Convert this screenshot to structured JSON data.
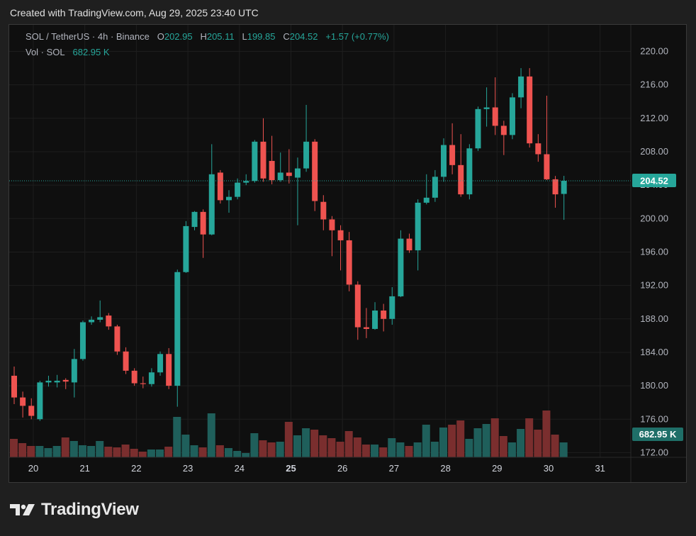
{
  "header": {
    "created_text": "Created with TradingView.com, Aug 29, 2025 23:40 UTC"
  },
  "legend": {
    "symbol": "SOL / TetherUS · 4h · Binance",
    "open_label": "O",
    "open": "202.95",
    "high_label": "H",
    "high": "205.11",
    "low_label": "L",
    "low": "199.85",
    "close_label": "C",
    "close": "204.52",
    "change": "+1.57 (+0.77%)",
    "vol_label": "Vol · SOL",
    "vol_value": "682.95 K"
  },
  "price_badge": "204.52",
  "volume_badge": "682.95 K",
  "logo": {
    "text": "TradingView",
    "icon": "tradingview-logo-icon"
  },
  "colors": {
    "up": "#26a69a",
    "down": "#ef5350",
    "vol_up": "#1f5f5b",
    "vol_down": "#7a2e2e",
    "background": "#0f0f0f"
  },
  "chart_data": {
    "type": "candlestick",
    "title": "SOL / TetherUS · 4h · Binance",
    "x_ticks": [
      "20",
      "21",
      "22",
      "23",
      "24",
      "25",
      "26",
      "27",
      "28",
      "29",
      "30",
      "31"
    ],
    "y_ticks": [
      "220.00",
      "216.00",
      "212.00",
      "208.00",
      "204.00",
      "200.00",
      "196.00",
      "192.00",
      "188.00",
      "184.00",
      "180.00",
      "176.00",
      "172.00"
    ],
    "ylim": [
      171,
      222
    ],
    "grid": true,
    "current_price": 204.52,
    "candles": [
      {
        "o": 181.2,
        "h": 182.3,
        "l": 177.8,
        "c": 178.6,
        "v": 0.26
      },
      {
        "o": 178.6,
        "h": 179.3,
        "l": 176.2,
        "c": 177.6,
        "v": 0.2
      },
      {
        "o": 177.6,
        "h": 178.5,
        "l": 176.0,
        "c": 176.4,
        "v": 0.16
      },
      {
        "o": 176.0,
        "h": 180.6,
        "l": 175.8,
        "c": 180.4,
        "v": 0.16
      },
      {
        "o": 180.4,
        "h": 181.2,
        "l": 179.9,
        "c": 180.6,
        "v": 0.13
      },
      {
        "o": 180.4,
        "h": 181.3,
        "l": 179.8,
        "c": 180.6,
        "v": 0.16
      },
      {
        "o": 180.7,
        "h": 180.9,
        "l": 179.6,
        "c": 180.5,
        "v": 0.28
      },
      {
        "o": 180.4,
        "h": 184.4,
        "l": 178.6,
        "c": 183.2,
        "v": 0.23
      },
      {
        "o": 183.2,
        "h": 187.8,
        "l": 183.0,
        "c": 187.6,
        "v": 0.17
      },
      {
        "o": 187.6,
        "h": 188.3,
        "l": 187.3,
        "c": 187.9,
        "v": 0.16
      },
      {
        "o": 187.9,
        "h": 190.2,
        "l": 187.6,
        "c": 188.2,
        "v": 0.23
      },
      {
        "o": 188.4,
        "h": 188.7,
        "l": 186.7,
        "c": 187.1,
        "v": 0.15
      },
      {
        "o": 187.1,
        "h": 187.3,
        "l": 183.7,
        "c": 184.1,
        "v": 0.14
      },
      {
        "o": 184.1,
        "h": 184.6,
        "l": 181.4,
        "c": 181.8,
        "v": 0.18
      },
      {
        "o": 181.8,
        "h": 182.1,
        "l": 180.0,
        "c": 180.3,
        "v": 0.12
      },
      {
        "o": 180.3,
        "h": 181.1,
        "l": 179.7,
        "c": 180.2,
        "v": 0.08
      },
      {
        "o": 180.2,
        "h": 182.1,
        "l": 179.9,
        "c": 181.6,
        "v": 0.11
      },
      {
        "o": 181.6,
        "h": 184.1,
        "l": 181.2,
        "c": 183.8,
        "v": 0.11
      },
      {
        "o": 183.8,
        "h": 184.5,
        "l": 179.6,
        "c": 180.0,
        "v": 0.15
      },
      {
        "o": 180.0,
        "h": 193.9,
        "l": 177.5,
        "c": 193.6,
        "v": 0.57
      },
      {
        "o": 193.6,
        "h": 199.7,
        "l": 193.5,
        "c": 199.1,
        "v": 0.32
      },
      {
        "o": 199.0,
        "h": 200.9,
        "l": 198.6,
        "c": 200.8,
        "v": 0.17
      },
      {
        "o": 200.8,
        "h": 201.1,
        "l": 195.3,
        "c": 198.1,
        "v": 0.14
      },
      {
        "o": 198.1,
        "h": 208.9,
        "l": 198.0,
        "c": 205.3,
        "v": 0.62
      },
      {
        "o": 205.5,
        "h": 205.8,
        "l": 201.8,
        "c": 202.2,
        "v": 0.17
      },
      {
        "o": 202.2,
        "h": 203.4,
        "l": 200.7,
        "c": 202.6,
        "v": 0.13
      },
      {
        "o": 202.6,
        "h": 204.8,
        "l": 202.3,
        "c": 204.3,
        "v": 0.09
      },
      {
        "o": 204.3,
        "h": 205.3,
        "l": 204.0,
        "c": 204.5,
        "v": 0.06
      },
      {
        "o": 204.5,
        "h": 209.4,
        "l": 204.3,
        "c": 209.2,
        "v": 0.34
      },
      {
        "o": 209.2,
        "h": 212.0,
        "l": 204.4,
        "c": 204.8,
        "v": 0.24
      },
      {
        "o": 206.9,
        "h": 209.9,
        "l": 204.1,
        "c": 204.6,
        "v": 0.21
      },
      {
        "o": 204.6,
        "h": 207.9,
        "l": 204.4,
        "c": 205.5,
        "v": 0.22
      },
      {
        "o": 205.5,
        "h": 208.3,
        "l": 204.2,
        "c": 205.1,
        "v": 0.5
      },
      {
        "o": 204.9,
        "h": 207.3,
        "l": 199.2,
        "c": 206.0,
        "v": 0.31
      },
      {
        "o": 206.0,
        "h": 213.6,
        "l": 205.6,
        "c": 209.2,
        "v": 0.41
      },
      {
        "o": 209.2,
        "h": 209.5,
        "l": 200.9,
        "c": 202.1,
        "v": 0.39
      },
      {
        "o": 202.0,
        "h": 202.8,
        "l": 198.6,
        "c": 199.9,
        "v": 0.31
      },
      {
        "o": 199.9,
        "h": 200.3,
        "l": 195.5,
        "c": 198.6,
        "v": 0.27
      },
      {
        "o": 198.6,
        "h": 199.2,
        "l": 193.8,
        "c": 197.4,
        "v": 0.22
      },
      {
        "o": 197.4,
        "h": 198.4,
        "l": 191.3,
        "c": 192.1,
        "v": 0.37
      },
      {
        "o": 192.1,
        "h": 192.5,
        "l": 185.5,
        "c": 187.0,
        "v": 0.28
      },
      {
        "o": 187.0,
        "h": 189.3,
        "l": 185.7,
        "c": 186.8,
        "v": 0.18
      },
      {
        "o": 186.8,
        "h": 190.0,
        "l": 186.7,
        "c": 189.0,
        "v": 0.18
      },
      {
        "o": 189.0,
        "h": 189.8,
        "l": 186.5,
        "c": 188.0,
        "v": 0.14
      },
      {
        "o": 188.0,
        "h": 191.8,
        "l": 187.3,
        "c": 190.7,
        "v": 0.27
      },
      {
        "o": 190.7,
        "h": 198.6,
        "l": 190.6,
        "c": 197.6,
        "v": 0.21
      },
      {
        "o": 197.6,
        "h": 198.2,
        "l": 195.9,
        "c": 196.2,
        "v": 0.16
      },
      {
        "o": 196.2,
        "h": 202.3,
        "l": 193.8,
        "c": 201.9,
        "v": 0.21
      },
      {
        "o": 201.9,
        "h": 205.3,
        "l": 201.7,
        "c": 202.5,
        "v": 0.46
      },
      {
        "o": 202.5,
        "h": 205.8,
        "l": 202.0,
        "c": 205.0,
        "v": 0.22
      },
      {
        "o": 205.0,
        "h": 209.6,
        "l": 204.4,
        "c": 208.8,
        "v": 0.42
      },
      {
        "o": 208.8,
        "h": 211.4,
        "l": 205.3,
        "c": 206.4,
        "v": 0.46
      },
      {
        "o": 206.4,
        "h": 210.1,
        "l": 202.6,
        "c": 202.9,
        "v": 0.52
      },
      {
        "o": 202.9,
        "h": 208.9,
        "l": 202.3,
        "c": 208.4,
        "v": 0.26
      },
      {
        "o": 208.4,
        "h": 213.4,
        "l": 208.1,
        "c": 213.1,
        "v": 0.41
      },
      {
        "o": 213.1,
        "h": 215.7,
        "l": 211.0,
        "c": 213.3,
        "v": 0.47
      },
      {
        "o": 213.3,
        "h": 216.9,
        "l": 210.0,
        "c": 211.1,
        "v": 0.55
      },
      {
        "o": 211.1,
        "h": 211.7,
        "l": 207.6,
        "c": 210.0,
        "v": 0.3
      },
      {
        "o": 210.0,
        "h": 215.0,
        "l": 209.5,
        "c": 214.5,
        "v": 0.21
      },
      {
        "o": 214.5,
        "h": 218.0,
        "l": 213.2,
        "c": 217.0,
        "v": 0.4
      },
      {
        "o": 217.0,
        "h": 218.0,
        "l": 208.5,
        "c": 209.0,
        "v": 0.55
      },
      {
        "o": 209.0,
        "h": 210.1,
        "l": 206.8,
        "c": 207.7,
        "v": 0.39
      },
      {
        "o": 207.7,
        "h": 214.7,
        "l": 204.6,
        "c": 204.7,
        "v": 0.66
      },
      {
        "o": 204.7,
        "h": 205.1,
        "l": 201.3,
        "c": 202.9,
        "v": 0.32
      },
      {
        "o": 202.95,
        "h": 205.11,
        "l": 199.85,
        "c": 204.52,
        "v": 0.21
      }
    ]
  }
}
